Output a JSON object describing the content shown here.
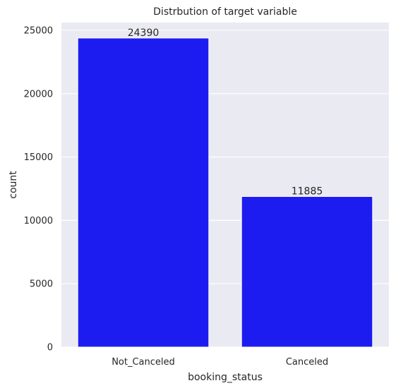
{
  "chart_data": {
    "type": "bar",
    "title": "Distrbution of target variable",
    "xlabel": "booking_status",
    "ylabel": "count",
    "categories": [
      "Not_Canceled",
      "Canceled"
    ],
    "values": [
      24390,
      11885
    ],
    "data_labels": [
      "24390",
      "11885"
    ],
    "ylim": [
      0,
      25610
    ],
    "yticks": [
      0,
      5000,
      10000,
      15000,
      20000,
      25000
    ],
    "ytick_labels": [
      "0",
      "5000",
      "10000",
      "15000",
      "20000",
      "25000"
    ],
    "grid": true,
    "bar_color": "#1c1cf0",
    "background_color": "#eaeaf2",
    "grid_color": "#ffffff"
  }
}
